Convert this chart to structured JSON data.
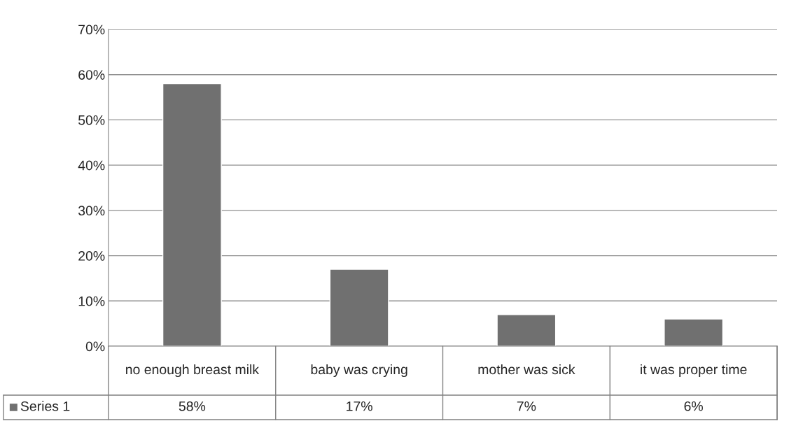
{
  "chart_data": {
    "type": "bar",
    "categories": [
      "no enough breast milk",
      "baby was crying",
      "mother was sick",
      "it was proper time"
    ],
    "series": [
      {
        "name": "Series 1",
        "color": "#707070",
        "values": [
          58,
          17,
          7,
          6
        ],
        "value_labels": [
          "58%",
          "17%",
          "7%",
          "6%"
        ]
      }
    ],
    "ylim": [
      0,
      70
    ],
    "yticks": [
      {
        "value": 0,
        "label": "0%"
      },
      {
        "value": 10,
        "label": "10%"
      },
      {
        "value": 20,
        "label": "20%"
      },
      {
        "value": 30,
        "label": "30%"
      },
      {
        "value": 40,
        "label": "40%"
      },
      {
        "value": 50,
        "label": "50%"
      },
      {
        "value": 60,
        "label": "60%"
      },
      {
        "value": 70,
        "label": "70%"
      }
    ],
    "grid": "y"
  }
}
